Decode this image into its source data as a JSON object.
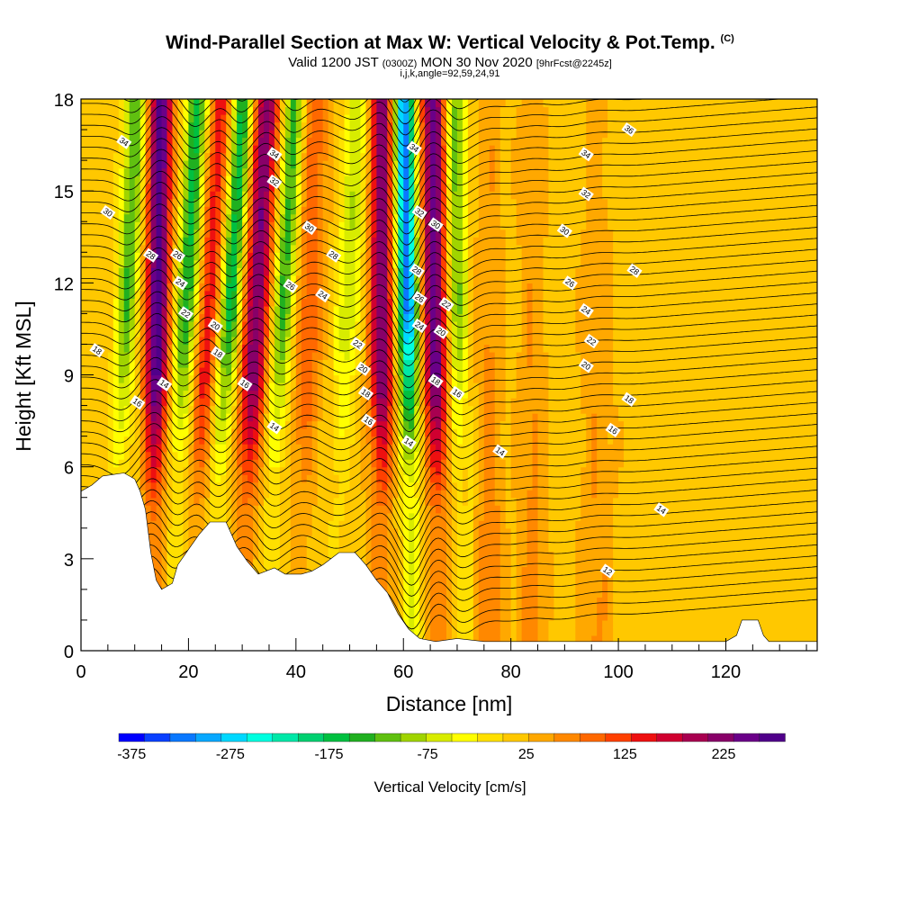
{
  "header": {
    "title": "Wind-Parallel Section at Max W: Vertical Velocity & Pot.Temp.",
    "title_mark": "(C)",
    "valid_prefix": "Valid 1200 JST",
    "valid_utc": "(0300Z)",
    "valid_date": "MON 30 Nov 2020",
    "forecast": "[9hrFcst@2245z]",
    "indices": "i,j,k,angle=92,59,24,91"
  },
  "chart_data": {
    "type": "heatmap",
    "xlabel": "Distance [nm]",
    "ylabel": "Height [Kft MSL]",
    "xlim": [
      0,
      137
    ],
    "ylim": [
      0,
      18
    ],
    "x_ticks": [
      0,
      20,
      40,
      60,
      80,
      100,
      120
    ],
    "y_ticks": [
      0,
      3,
      6,
      9,
      12,
      15,
      18
    ],
    "colorbar": {
      "label": "Vertical Velocity [cm/s]",
      "min": -375,
      "max": 275,
      "step": 25,
      "tick_values": [
        -375,
        -275,
        -175,
        -75,
        25,
        125,
        225
      ],
      "tick_labels": [
        "-375",
        "-275",
        "-175",
        "-75",
        "25",
        "125",
        "225"
      ],
      "colors": [
        "#0000ff",
        "#0a40ff",
        "#0a78ff",
        "#08a8ff",
        "#00d8ff",
        "#00ffe0",
        "#00e8a8",
        "#00d070",
        "#00c040",
        "#20b020",
        "#60c010",
        "#a0d400",
        "#d8ec00",
        "#ffff00",
        "#ffe000",
        "#ffc800",
        "#ffa800",
        "#ff8800",
        "#ff6800",
        "#ff4000",
        "#ee1010",
        "#d00030",
        "#a80050",
        "#880068",
        "#6a0088",
        "#50008a"
      ]
    },
    "terrain_kft": [
      [
        0,
        5.2
      ],
      [
        2,
        5.4
      ],
      [
        4,
        5.7
      ],
      [
        8,
        5.8
      ],
      [
        10,
        5.6
      ],
      [
        11,
        5.2
      ],
      [
        12,
        4.6
      ],
      [
        13,
        3.2
      ],
      [
        14,
        2.3
      ],
      [
        15,
        2.0
      ],
      [
        17,
        2.2
      ],
      [
        18,
        2.8
      ],
      [
        20,
        3.3
      ],
      [
        22,
        3.8
      ],
      [
        24,
        4.2
      ],
      [
        27,
        4.2
      ],
      [
        29,
        3.4
      ],
      [
        31,
        2.9
      ],
      [
        33,
        2.5
      ],
      [
        36,
        2.7
      ],
      [
        38,
        2.5
      ],
      [
        41,
        2.5
      ],
      [
        43,
        2.6
      ],
      [
        45,
        2.8
      ],
      [
        48,
        3.2
      ],
      [
        51,
        3.2
      ],
      [
        53,
        2.8
      ],
      [
        55,
        2.3
      ],
      [
        57,
        1.9
      ],
      [
        59,
        1.2
      ],
      [
        61,
        0.7
      ],
      [
        63,
        0.4
      ],
      [
        66,
        0.3
      ],
      [
        70,
        0.4
      ],
      [
        75,
        0.3
      ],
      [
        90,
        0.3
      ],
      [
        120,
        0.3
      ],
      [
        122,
        0.5
      ],
      [
        123,
        1.0
      ],
      [
        126,
        1.0
      ],
      [
        127,
        0.5
      ],
      [
        128,
        0.3
      ],
      [
        137,
        0.3
      ]
    ],
    "velocity_features": [
      {
        "x": 14,
        "w": 2.2,
        "amp": 250,
        "tilt": 0.1
      },
      {
        "x": 8,
        "w": 2.0,
        "amp": -140,
        "tilt": 0.25
      },
      {
        "x": 19,
        "w": 2.0,
        "amp": -170,
        "tilt": 0.3
      },
      {
        "x": 23,
        "w": 2.0,
        "amp": 130,
        "tilt": 0.35
      },
      {
        "x": 27,
        "w": 2.0,
        "amp": -180,
        "tilt": 0.35
      },
      {
        "x": 32,
        "w": 2.4,
        "amp": 210,
        "tilt": 0.3
      },
      {
        "x": 37,
        "w": 2.0,
        "amp": -150,
        "tilt": 0.3
      },
      {
        "x": 42,
        "w": 2.5,
        "amp": 80,
        "tilt": 0.2
      },
      {
        "x": 49,
        "w": 2.2,
        "amp": -90,
        "tilt": 0.3
      },
      {
        "x": 56,
        "w": 2.2,
        "amp": 220,
        "tilt": 0.0
      },
      {
        "x": 61,
        "w": 2.0,
        "amp": -330,
        "tilt": -0.1
      },
      {
        "x": 66,
        "w": 2.4,
        "amp": 230,
        "tilt": -0.05
      },
      {
        "x": 70,
        "w": 2.0,
        "amp": -130,
        "tilt": -0.05
      },
      {
        "x": 76,
        "w": 2.5,
        "amp": 60,
        "tilt": 0.0
      },
      {
        "x": 84,
        "w": 2.5,
        "amp": 50,
        "tilt": 0.0
      },
      {
        "x": 96,
        "w": 3.0,
        "amp": 40,
        "tilt": 0.0
      }
    ],
    "theta_contour_labels": [
      {
        "x": 8,
        "y": 16.6,
        "text": "34"
      },
      {
        "x": 5,
        "y": 14.3,
        "text": "30"
      },
      {
        "x": 13,
        "y": 12.9,
        "text": "28"
      },
      {
        "x": 18,
        "y": 12.9,
        "text": "26"
      },
      {
        "x": 18.5,
        "y": 12.0,
        "text": "24"
      },
      {
        "x": 19.5,
        "y": 11.0,
        "text": "22"
      },
      {
        "x": 25,
        "y": 10.6,
        "text": "20"
      },
      {
        "x": 25.5,
        "y": 9.7,
        "text": "18"
      },
      {
        "x": 3,
        "y": 9.8,
        "text": "18"
      },
      {
        "x": 15.5,
        "y": 8.7,
        "text": "14"
      },
      {
        "x": 10.5,
        "y": 8.1,
        "text": "16"
      },
      {
        "x": 30.5,
        "y": 8.7,
        "text": "16"
      },
      {
        "x": 36,
        "y": 7.3,
        "text": "14"
      },
      {
        "x": 36,
        "y": 16.2,
        "text": "34"
      },
      {
        "x": 36,
        "y": 15.3,
        "text": "32"
      },
      {
        "x": 42.5,
        "y": 13.8,
        "text": "30"
      },
      {
        "x": 47,
        "y": 12.9,
        "text": "28"
      },
      {
        "x": 39,
        "y": 11.9,
        "text": "26"
      },
      {
        "x": 45,
        "y": 11.6,
        "text": "24"
      },
      {
        "x": 51.5,
        "y": 10.0,
        "text": "22"
      },
      {
        "x": 52.5,
        "y": 9.2,
        "text": "20"
      },
      {
        "x": 53,
        "y": 8.4,
        "text": "18"
      },
      {
        "x": 53.5,
        "y": 7.5,
        "text": "16"
      },
      {
        "x": 61,
        "y": 6.8,
        "text": "14"
      },
      {
        "x": 62,
        "y": 16.4,
        "text": "34"
      },
      {
        "x": 63,
        "y": 14.3,
        "text": "32"
      },
      {
        "x": 62.5,
        "y": 12.4,
        "text": "28"
      },
      {
        "x": 63,
        "y": 11.5,
        "text": "26"
      },
      {
        "x": 63,
        "y": 10.6,
        "text": "24"
      },
      {
        "x": 66,
        "y": 13.9,
        "text": "30"
      },
      {
        "x": 68,
        "y": 11.3,
        "text": "22"
      },
      {
        "x": 67,
        "y": 10.4,
        "text": "20"
      },
      {
        "x": 66,
        "y": 8.8,
        "text": "18"
      },
      {
        "x": 70,
        "y": 8.4,
        "text": "16"
      },
      {
        "x": 78,
        "y": 6.5,
        "text": "14"
      },
      {
        "x": 102,
        "y": 17.0,
        "text": "36"
      },
      {
        "x": 94,
        "y": 16.2,
        "text": "34"
      },
      {
        "x": 94,
        "y": 14.9,
        "text": "32"
      },
      {
        "x": 90,
        "y": 13.7,
        "text": "30"
      },
      {
        "x": 103,
        "y": 12.4,
        "text": "28"
      },
      {
        "x": 91,
        "y": 12.0,
        "text": "26"
      },
      {
        "x": 94,
        "y": 11.1,
        "text": "24"
      },
      {
        "x": 95,
        "y": 10.1,
        "text": "22"
      },
      {
        "x": 94,
        "y": 9.3,
        "text": "20"
      },
      {
        "x": 102,
        "y": 8.2,
        "text": "18"
      },
      {
        "x": 99,
        "y": 7.2,
        "text": "16"
      },
      {
        "x": 108,
        "y": 4.6,
        "text": "14"
      },
      {
        "x": 98,
        "y": 2.6,
        "text": "12"
      }
    ]
  }
}
